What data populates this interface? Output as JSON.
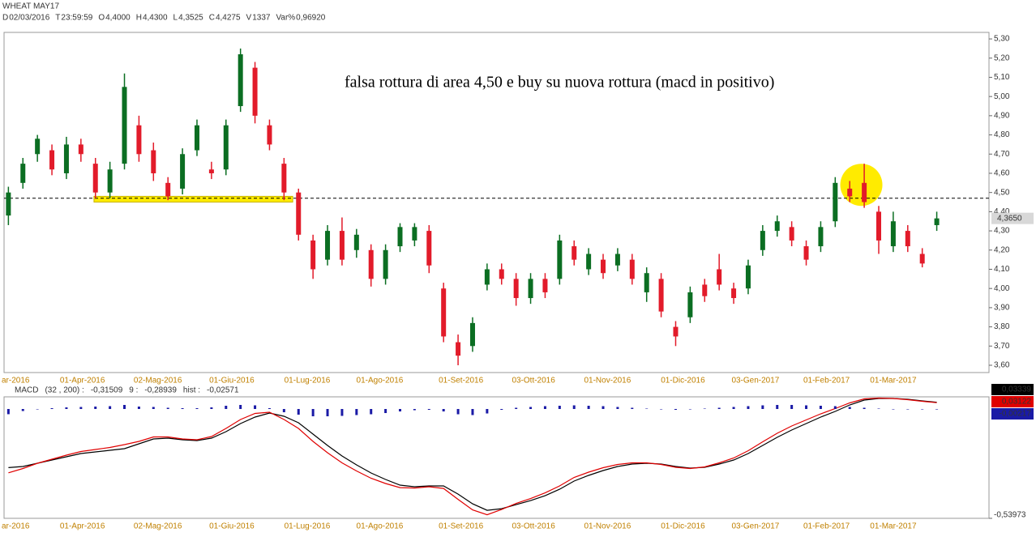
{
  "header": {
    "title": "WHEAT MAY17",
    "fields": [
      {
        "key": "D",
        "value": "02/03/2016"
      },
      {
        "key": "T",
        "value": "23:59:59"
      },
      {
        "key": "O",
        "value": "4,4000"
      },
      {
        "key": "H",
        "value": "4,4300"
      },
      {
        "key": "L",
        "value": "4,3525"
      },
      {
        "key": "C",
        "value": "4,4275"
      },
      {
        "key": "V",
        "value": "1337"
      },
      {
        "key": "Var%",
        "value": "0,96920"
      }
    ]
  },
  "chart_data": [
    {
      "type": "candlestick",
      "annotation": "falsa rottura di area 4,50 e buy su nuova rottura (macd in positivo)",
      "categories": [
        null,
        null,
        null,
        null,
        null,
        null,
        null,
        null,
        null,
        null,
        null,
        null,
        null,
        null,
        null,
        null,
        null,
        null,
        null,
        null,
        null,
        null,
        null,
        null,
        null,
        null,
        null,
        null,
        null,
        null,
        null,
        null,
        null,
        null,
        null,
        null,
        null,
        null,
        null,
        null,
        null,
        null,
        null,
        null,
        null,
        null,
        null,
        null,
        null,
        null,
        null,
        null,
        null,
        null,
        null,
        null,
        null,
        null,
        null,
        null,
        null,
        null,
        null,
        null,
        null
      ],
      "open": [
        4.38,
        4.55,
        4.7,
        4.72,
        4.6,
        4.75,
        4.65,
        4.5,
        4.65,
        4.85,
        4.72,
        4.55,
        4.52,
        4.72,
        4.62,
        4.62,
        4.95,
        5.15,
        4.85,
        4.65,
        4.5,
        4.25,
        4.15,
        4.3,
        4.2,
        4.2,
        4.05,
        4.22,
        4.25,
        4.3,
        4.0,
        3.72,
        3.7,
        4.02,
        4.1,
        4.05,
        3.95,
        4.05,
        4.05,
        4.22,
        4.1,
        4.15,
        4.12,
        4.15,
        3.98,
        4.05,
        3.8,
        3.85,
        4.02,
        4.1,
        4.0,
        4.0,
        4.2,
        4.3,
        4.32,
        4.22,
        4.22,
        4.35,
        4.52,
        4.55,
        4.4,
        4.22,
        4.3,
        4.18,
        4.33
      ],
      "high": [
        4.53,
        4.68,
        4.8,
        4.75,
        4.79,
        4.78,
        4.68,
        4.66,
        5.12,
        4.9,
        4.76,
        4.58,
        4.73,
        4.88,
        4.66,
        4.88,
        5.25,
        5.18,
        4.88,
        4.68,
        4.52,
        4.28,
        4.33,
        4.37,
        4.31,
        4.23,
        4.23,
        4.34,
        4.34,
        4.33,
        4.03,
        3.76,
        3.85,
        4.13,
        4.13,
        4.08,
        4.08,
        4.08,
        4.28,
        4.25,
        4.21,
        4.18,
        4.21,
        4.18,
        4.11,
        4.08,
        3.83,
        4.01,
        4.05,
        4.18,
        4.03,
        4.15,
        4.33,
        4.38,
        4.35,
        4.25,
        4.35,
        4.58,
        4.56,
        4.65,
        4.43,
        4.4,
        4.33,
        4.21,
        4.4
      ],
      "low": [
        4.33,
        4.52,
        4.66,
        4.59,
        4.57,
        4.66,
        4.47,
        4.47,
        4.62,
        4.66,
        4.56,
        4.46,
        4.49,
        4.69,
        4.57,
        4.59,
        4.92,
        4.86,
        4.72,
        4.46,
        4.25,
        4.05,
        4.12,
        4.12,
        4.16,
        4.01,
        4.02,
        4.19,
        4.22,
        4.08,
        3.72,
        3.6,
        3.67,
        3.99,
        4.02,
        3.91,
        3.92,
        3.95,
        4.02,
        4.12,
        4.07,
        4.05,
        4.09,
        4.02,
        3.93,
        3.85,
        3.7,
        3.82,
        3.93,
        3.99,
        3.92,
        3.97,
        4.17,
        4.27,
        4.22,
        4.12,
        4.19,
        4.32,
        4.45,
        4.42,
        4.18,
        4.19,
        4.19,
        4.11,
        4.3
      ],
      "close": [
        4.5,
        4.65,
        4.78,
        4.62,
        4.75,
        4.7,
        4.5,
        4.62,
        5.05,
        4.7,
        4.6,
        4.48,
        4.7,
        4.85,
        4.6,
        4.85,
        5.22,
        4.9,
        4.75,
        4.5,
        4.28,
        4.1,
        4.3,
        4.15,
        4.28,
        4.05,
        4.2,
        4.32,
        4.32,
        4.12,
        3.75,
        3.65,
        3.82,
        4.1,
        4.05,
        3.95,
        4.05,
        3.98,
        4.25,
        4.15,
        4.18,
        4.08,
        4.18,
        4.05,
        4.08,
        3.88,
        3.75,
        3.98,
        3.96,
        4.02,
        3.95,
        4.12,
        4.3,
        4.35,
        4.25,
        4.15,
        4.32,
        4.55,
        4.48,
        4.45,
        4.25,
        4.35,
        4.22,
        4.13,
        4.365
      ],
      "up_color": "#0b6e22",
      "down_color": "#e21b2a",
      "last_label": "4,3650",
      "breakout_level": 4.47,
      "support_band": {
        "x": [
          5.9,
          19.6
        ],
        "y": [
          4.45,
          4.48
        ],
        "color": "#ffeb00"
      },
      "highlight": {
        "x": 58.8,
        "y": 4.54,
        "color": "#ffeb00"
      },
      "xlim": [
        -0.3,
        67.6
      ],
      "xticks": [
        {
          "value": 0.5,
          "label": "ar-2016"
        },
        {
          "value": 5.1,
          "label": "01-Apr-2016"
        },
        {
          "value": 10.3,
          "label": "02-Mag-2016"
        },
        {
          "value": 15.4,
          "label": "01-Giu-2016"
        },
        {
          "value": 20.6,
          "label": "01-Lug-2016"
        },
        {
          "value": 25.6,
          "label": "01-Ago-2016"
        },
        {
          "value": 31.2,
          "label": "01-Set-2016"
        },
        {
          "value": 36.2,
          "label": "03-Ott-2016"
        },
        {
          "value": 41.3,
          "label": "01-Nov-2016"
        },
        {
          "value": 46.5,
          "label": "01-Dic-2016"
        },
        {
          "value": 51.5,
          "label": "03-Gen-2017"
        },
        {
          "value": 56.4,
          "label": "01-Feb-2017"
        },
        {
          "value": 61.0,
          "label": "01-Mar-2017"
        }
      ],
      "ylim": [
        3.562,
        5.334
      ],
      "yticks": [
        {
          "value": 3.6,
          "label": "3,60"
        },
        {
          "value": 3.7,
          "label": "3,70"
        },
        {
          "value": 3.8,
          "label": "3,80"
        },
        {
          "value": 3.9,
          "label": "3,90"
        },
        {
          "value": 4.0,
          "label": "4,00"
        },
        {
          "value": 4.1,
          "label": "4,10"
        },
        {
          "value": 4.2,
          "label": "4,20"
        },
        {
          "value": 4.3,
          "label": "4,30"
        },
        {
          "value": 4.4,
          "label": "4,40"
        },
        {
          "value": 4.5,
          "label": "4,50"
        },
        {
          "value": 4.6,
          "label": "4,60"
        },
        {
          "value": 4.7,
          "label": "4,70"
        },
        {
          "value": 4.8,
          "label": "4,80"
        },
        {
          "value": 4.9,
          "label": "4,90"
        },
        {
          "value": 5.0,
          "label": "5,00"
        },
        {
          "value": 5.1,
          "label": "5,10"
        },
        {
          "value": 5.2,
          "label": "5,20"
        },
        {
          "value": 5.3,
          "label": "5,30"
        }
      ]
    },
    {
      "type": "macd",
      "legend": {
        "name": "MACD",
        "params": "(32 , 200) :",
        "macd_value": "-0,31509",
        "signal_name": "9 :",
        "signal_value": "-0,28939",
        "hist_name": "hist :",
        "hist_value": "-0,02571"
      },
      "series": [
        {
          "color": "#000000",
          "style": "line",
          "last_label": "0,03339",
          "values": [
            -0.2894,
            -0.284,
            -0.268,
            -0.252,
            -0.236,
            -0.22,
            -0.212,
            -0.204,
            -0.196,
            -0.172,
            -0.148,
            -0.144,
            -0.152,
            -0.156,
            -0.144,
            -0.112,
            -0.072,
            -0.04,
            -0.02,
            -0.036,
            -0.068,
            -0.124,
            -0.18,
            -0.232,
            -0.276,
            -0.316,
            -0.348,
            -0.376,
            -0.384,
            -0.38,
            -0.38,
            -0.42,
            -0.468,
            -0.5,
            -0.492,
            -0.472,
            -0.452,
            -0.428,
            -0.396,
            -0.356,
            -0.328,
            -0.304,
            -0.284,
            -0.272,
            -0.268,
            -0.272,
            -0.284,
            -0.292,
            -0.288,
            -0.272,
            -0.252,
            -0.22,
            -0.18,
            -0.14,
            -0.104,
            -0.072,
            -0.04,
            -0.012,
            0.02,
            0.044,
            0.052,
            0.052,
            0.048,
            0.04,
            0.03339
          ]
        },
        {
          "color": "#e00000",
          "style": "line",
          "last_label": "0,03122",
          "values": [
            -0.3151,
            -0.294,
            -0.268,
            -0.248,
            -0.228,
            -0.21,
            -0.2,
            -0.19,
            -0.176,
            -0.16,
            -0.138,
            -0.138,
            -0.148,
            -0.152,
            -0.136,
            -0.096,
            -0.052,
            -0.022,
            -0.016,
            -0.052,
            -0.096,
            -0.16,
            -0.216,
            -0.266,
            -0.306,
            -0.342,
            -0.368,
            -0.388,
            -0.39,
            -0.384,
            -0.392,
            -0.446,
            -0.498,
            -0.522,
            -0.496,
            -0.466,
            -0.442,
            -0.414,
            -0.38,
            -0.338,
            -0.312,
            -0.29,
            -0.274,
            -0.266,
            -0.266,
            -0.274,
            -0.288,
            -0.294,
            -0.286,
            -0.266,
            -0.242,
            -0.206,
            -0.162,
            -0.12,
            -0.084,
            -0.054,
            -0.024,
            0.002,
            0.03,
            0.05,
            0.054,
            0.052,
            0.046,
            0.038,
            0.03122
          ]
        },
        {
          "color": "#1a1aa6",
          "style": "bars",
          "last_label": "-0,00217",
          "values": [
            -0.0257,
            -0.01,
            0.0,
            0.004,
            0.008,
            0.01,
            0.012,
            0.014,
            0.02,
            0.012,
            0.01,
            0.006,
            0.004,
            0.004,
            0.008,
            0.016,
            0.02,
            0.018,
            0.004,
            -0.016,
            -0.028,
            -0.036,
            -0.036,
            -0.034,
            -0.03,
            -0.026,
            -0.02,
            -0.012,
            -0.006,
            -0.004,
            -0.012,
            -0.026,
            -0.03,
            -0.022,
            -0.004,
            0.006,
            0.01,
            0.014,
            0.016,
            0.018,
            0.016,
            0.014,
            0.01,
            0.006,
            0.002,
            -0.002,
            -0.004,
            -0.002,
            0.002,
            0.006,
            0.01,
            0.014,
            0.018,
            0.02,
            0.02,
            0.018,
            0.016,
            0.014,
            0.01,
            0.006,
            0.002,
            0.0,
            -0.002,
            -0.002,
            -0.00217
          ]
        }
      ],
      "ylim": [
        -0.53973,
        0.06
      ],
      "yticks": [
        {
          "value": -0.53973,
          "label": "-0,53973"
        }
      ]
    }
  ]
}
